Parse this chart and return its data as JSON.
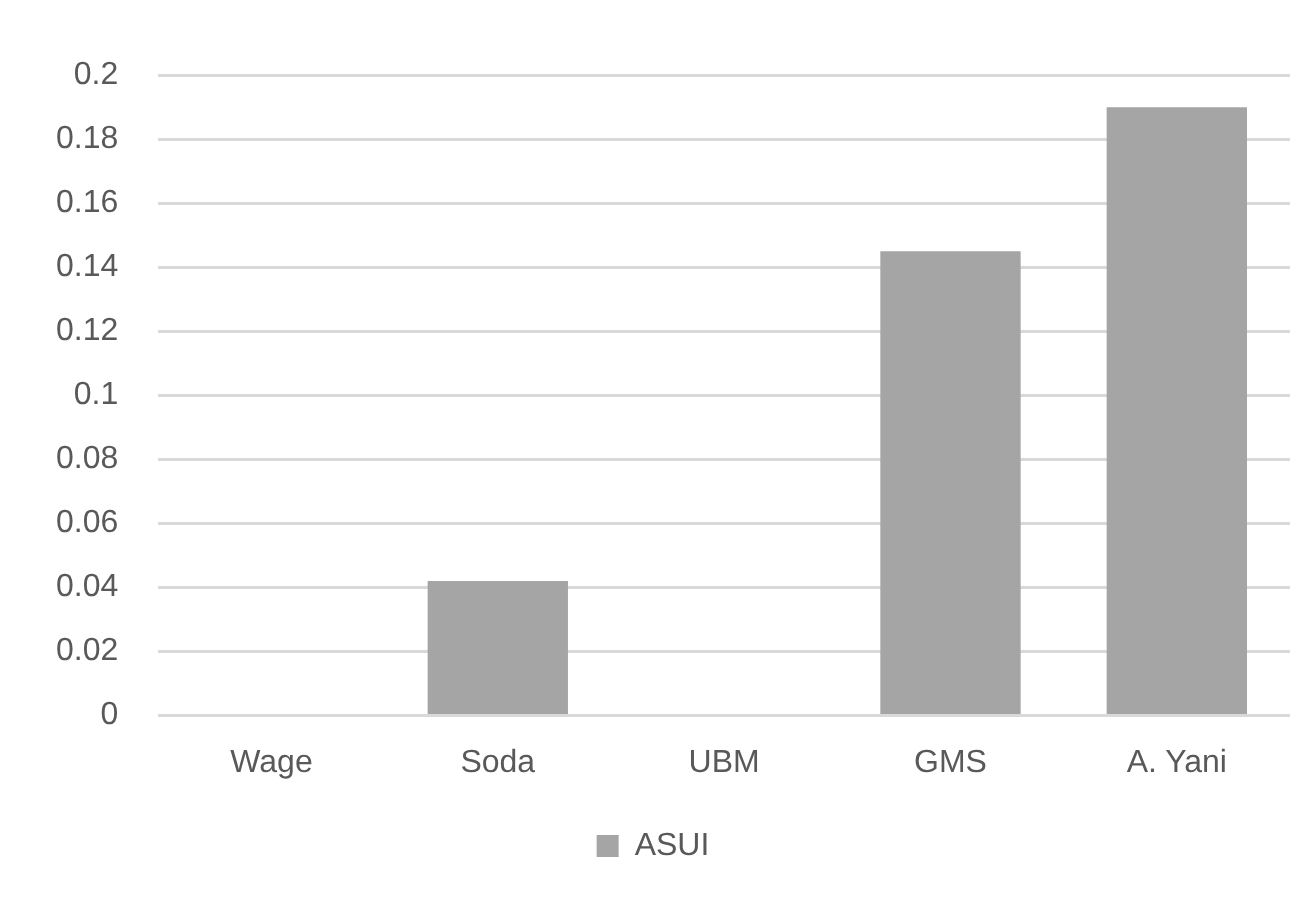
{
  "chart_data": {
    "type": "bar",
    "categories": [
      "Wage",
      "Soda",
      "UBM",
      "GMS",
      "A. Yani"
    ],
    "series": [
      {
        "name": "ASUI",
        "color": "#a5a5a5",
        "values": [
          0,
          0.042,
          0,
          0.145,
          0.19
        ]
      }
    ],
    "ylim": [
      0,
      0.2
    ],
    "yticks": [
      0,
      0.02,
      0.04,
      0.06,
      0.08,
      0.1,
      0.12,
      0.14,
      0.16,
      0.18,
      0.2
    ],
    "grid": "y",
    "legend": "bottom"
  }
}
